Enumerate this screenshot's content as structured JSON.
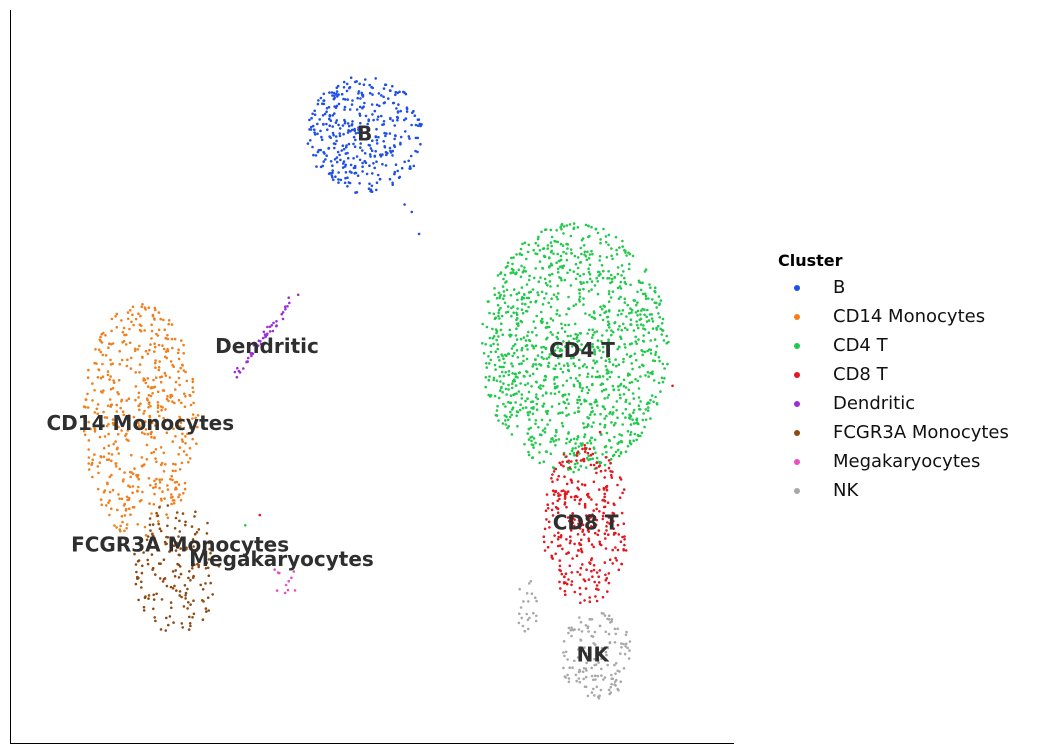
{
  "chart_data": {
    "type": "scatter",
    "title": "",
    "xlabel": "",
    "ylabel": "",
    "xlim": [
      0,
      100
    ],
    "ylim": [
      0,
      100
    ],
    "grid": false,
    "axes": {
      "left_spine": true,
      "bottom_spine": true,
      "ticks": false
    },
    "legend": {
      "title": "Cluster",
      "placement": "right"
    },
    "series": [
      {
        "name": "B",
        "color": "#1f4fe8",
        "clusters": [
          {
            "cx": 49,
            "cy": 83,
            "rx": 8,
            "ry": 8,
            "n": 380
          }
        ],
        "stray": [
          [
            56.5,
            69.5
          ],
          [
            55.5,
            72.5
          ],
          [
            54.5,
            73.5
          ]
        ]
      },
      {
        "name": "CD14 Monocytes",
        "color": "#f07f1d",
        "clusters": [
          {
            "cx": 18,
            "cy": 44,
            "rx": 8,
            "ry": 16,
            "n": 520
          }
        ],
        "stray": []
      },
      {
        "name": "CD4 T",
        "color": "#22c94d",
        "clusters": [
          {
            "cx": 78,
            "cy": 54,
            "rx": 13,
            "ry": 17,
            "n": 1250
          }
        ],
        "stray": [
          [
            32.5,
            29.8
          ]
        ]
      },
      {
        "name": "CD8 T",
        "color": "#e3171d",
        "clusters": [
          {
            "cx": 79.5,
            "cy": 30,
            "rx": 6,
            "ry": 11,
            "n": 330
          }
        ],
        "stray": [
          [
            34.5,
            31.2
          ],
          [
            91.5,
            48.8
          ],
          [
            81.5,
            42.5
          ]
        ]
      },
      {
        "name": "Dendritic",
        "color": "#9a2fd6",
        "trail": [
          [
            30.5,
            49.5
          ],
          [
            39.5,
            61
          ]
        ],
        "n": 45,
        "stray": [
          [
            38.5,
            60.8
          ],
          [
            39.8,
            61.2
          ]
        ]
      },
      {
        "name": "FCGR3A Monocytes",
        "color": "#8e4a12",
        "clusters": [
          {
            "cx": 23,
            "cy": 24,
            "rx": 6,
            "ry": 9,
            "n": 170
          }
        ],
        "stray": []
      },
      {
        "name": "Megakaryocytes",
        "color": "#e84fc4",
        "clusters": [
          {
            "cx": 37,
            "cy": 22,
            "rx": 3,
            "ry": 2,
            "n": 10
          }
        ],
        "stray": [
          [
            39.2,
            23.5
          ]
        ]
      },
      {
        "name": "NK",
        "color": "#a8a8a8",
        "clusters": [
          {
            "cx": 81,
            "cy": 12,
            "rx": 5,
            "ry": 6,
            "n": 150
          },
          {
            "cx": 71.5,
            "cy": 18.5,
            "rx": 1.5,
            "ry": 4,
            "n": 22
          }
        ],
        "stray": []
      }
    ],
    "annotations": [
      {
        "text": "B",
        "x": 49,
        "y": 83
      },
      {
        "text": "Dendritic",
        "x": 35.5,
        "y": 54
      },
      {
        "text": "CD14 Monocytes",
        "x": 18,
        "y": 43.5
      },
      {
        "text": "CD4 T",
        "x": 79,
        "y": 53.5
      },
      {
        "text": "CD8 T",
        "x": 79.5,
        "y": 30
      },
      {
        "text": "FCGR3A Monocytes",
        "x": 23.5,
        "y": 27
      },
      {
        "text": "Megakaryocytes",
        "x": 37.5,
        "y": 25
      },
      {
        "text": "NK",
        "x": 80.5,
        "y": 12
      }
    ]
  }
}
